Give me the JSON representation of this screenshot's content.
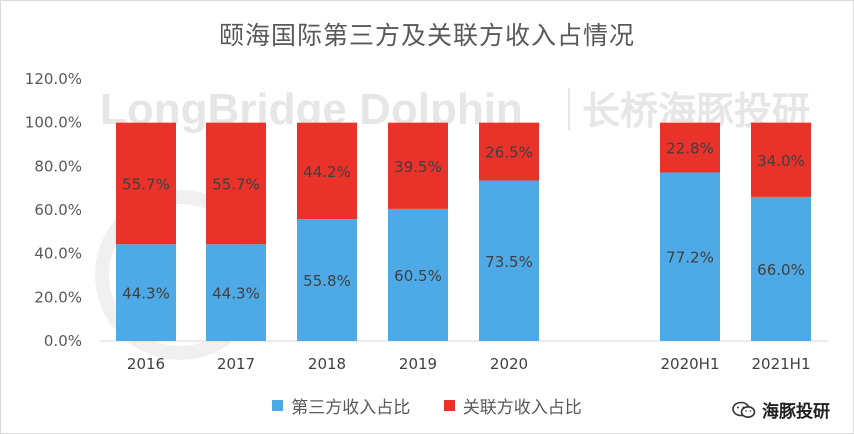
{
  "chart_data": {
    "type": "bar",
    "stacked": true,
    "percent": true,
    "title": "颐海国际第三方及关联方收入占情况",
    "categories": [
      "2016",
      "2017",
      "2018",
      "2019",
      "2020",
      "2020H1",
      "2021H1"
    ],
    "series": [
      {
        "name": "第三方收入占比",
        "values": [
          44.3,
          44.3,
          55.8,
          60.5,
          73.5,
          77.2,
          66.0
        ],
        "labels": [
          "44.3%",
          "44.3%",
          "55.8%",
          "60.5%",
          "73.5%",
          "77.2%",
          "66.0%"
        ]
      },
      {
        "name": "关联方收入占比",
        "values": [
          55.7,
          55.7,
          44.2,
          39.5,
          26.5,
          22.8,
          34.0
        ],
        "labels": [
          "55.7%",
          "55.7%",
          "44.2%",
          "39.5%",
          "26.5%",
          "22.8%",
          "34.0%"
        ]
      }
    ],
    "ylim": [
      0,
      120
    ],
    "yticks": [
      "0.0%",
      "20.0%",
      "40.0%",
      "60.0%",
      "80.0%",
      "100.0%",
      "120.0%"
    ],
    "legend_position": "bottom",
    "grid": false
  },
  "colors": {
    "third_party": "#4eaae6",
    "related_party": "#e8322a"
  },
  "watermark": {
    "latin": "LongBridge Dolphin",
    "cjk": "长桥海豚投研"
  },
  "brand": {
    "name": "海豚投研",
    "icon": "wechat-icon"
  }
}
